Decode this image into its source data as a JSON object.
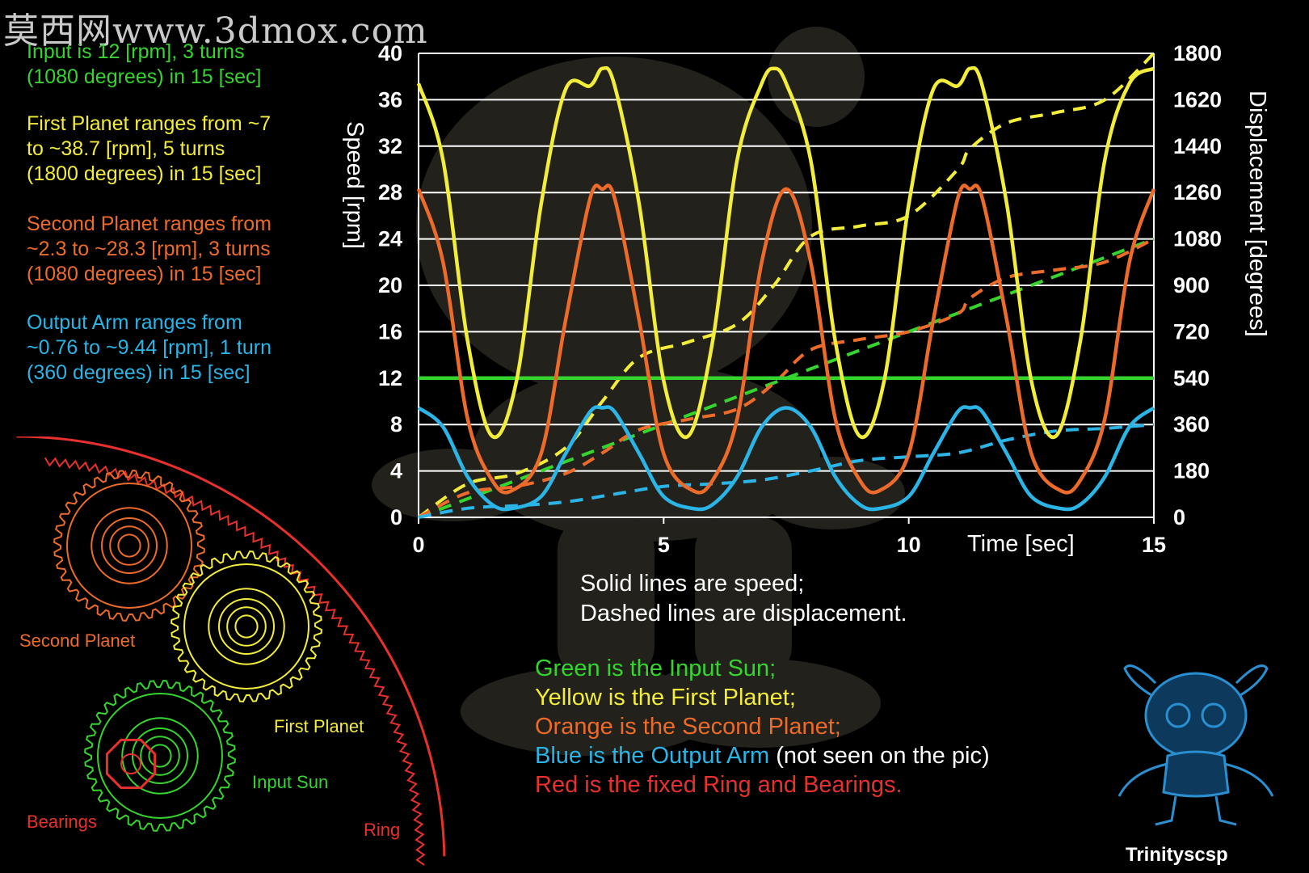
{
  "watermark": "莫西网www.3dmox.com",
  "info_blocks": [
    {
      "text": "Input is 12 [rpm], 3 turns\n(1080 degrees) in 15 [sec]",
      "color": "#35d42e"
    },
    {
      "text": "First Planet ranges from ~7\nto ~38.7 [rpm], 5 turns\n(1800 degrees) in 15 [sec]",
      "color": "#f2ec3a"
    },
    {
      "text": "Second Planet ranges from\n~2.3 to ~28.3 [rpm], 3 turns\n(1080 degrees) in 15 [sec]",
      "color": "#ec6b2a"
    },
    {
      "text": "Output Arm ranges from\n~0.76 to ~9.44 [rpm], 1 turn\n(360 degrees) in 15 [sec]",
      "color": "#2bb4e6"
    }
  ],
  "chart_data": {
    "type": "line",
    "xlabel": "Time [sec]",
    "ylabel": "Speed [rpm]",
    "y2label": "Displacement [degrees]",
    "xlim": [
      0,
      15
    ],
    "ylim": [
      0,
      40
    ],
    "y2lim": [
      0,
      1800
    ],
    "xticks": [
      0,
      5,
      10,
      15
    ],
    "yticks": [
      0,
      4,
      8,
      12,
      16,
      20,
      24,
      28,
      32,
      36,
      40
    ],
    "y2ticks": [
      0,
      180,
      360,
      540,
      720,
      900,
      1080,
      1260,
      1440,
      1620,
      1800
    ],
    "grid": true,
    "speed_series": [
      {
        "name": "Input Sun",
        "color": "#35d42e",
        "style": "solid",
        "axis": "left",
        "x": [
          0,
          15
        ],
        "values": [
          12,
          12
        ]
      },
      {
        "name": "First Planet",
        "color": "#f2ec3a",
        "style": "solid",
        "axis": "left",
        "x": [
          0,
          0.5,
          1.0,
          1.5,
          2.0,
          2.5,
          3.0,
          3.5,
          3.75,
          4.0,
          4.5,
          5.0,
          5.5,
          6.0,
          6.5,
          7.0,
          7.25,
          7.5,
          8.0,
          8.5,
          9.0,
          9.5,
          10.0,
          10.5,
          11.0,
          11.25,
          11.5,
          12.0,
          12.5,
          13.0,
          13.5,
          14.0,
          14.5,
          15.0
        ],
        "values": [
          37.4,
          30.8,
          15.2,
          7.0,
          11.8,
          27.0,
          36.9,
          37.2,
          38.7,
          37.2,
          27.0,
          11.8,
          7.0,
          15.2,
          30.8,
          37.4,
          38.7,
          37.4,
          30.8,
          15.2,
          7.0,
          11.8,
          27.0,
          36.9,
          37.2,
          38.7,
          37.2,
          27.0,
          11.8,
          7.0,
          15.2,
          30.8,
          37.4,
          38.7
        ]
      },
      {
        "name": "Second Planet",
        "color": "#ec6b2a",
        "style": "solid",
        "axis": "left",
        "x": [
          0,
          0.5,
          1.0,
          1.5,
          1.9,
          2.5,
          3.0,
          3.5,
          3.75,
          4.0,
          4.5,
          5.0,
          5.6,
          6.0,
          6.5,
          7.0,
          7.5,
          8.0,
          8.5,
          9.0,
          9.4,
          10.0,
          10.5,
          11.0,
          11.25,
          11.5,
          12.0,
          12.5,
          13.1,
          13.5,
          14.0,
          14.5,
          15.0
        ],
        "values": [
          28.3,
          22.0,
          8.5,
          3.2,
          2.3,
          5.5,
          17.0,
          27.5,
          28.3,
          27.5,
          17.0,
          5.5,
          2.3,
          3.2,
          8.5,
          22.0,
          28.3,
          22.0,
          8.5,
          3.2,
          2.3,
          5.5,
          17.0,
          27.5,
          28.3,
          27.5,
          17.0,
          5.5,
          2.3,
          3.2,
          8.5,
          22.0,
          28.3
        ]
      },
      {
        "name": "Output Arm",
        "color": "#2bb4e6",
        "style": "solid",
        "axis": "left",
        "x": [
          0,
          0.5,
          1.0,
          1.5,
          1.9,
          2.5,
          3.0,
          3.5,
          3.75,
          4.0,
          4.5,
          5.0,
          5.6,
          6.0,
          6.5,
          7.0,
          7.5,
          8.0,
          8.5,
          9.0,
          9.4,
          10.0,
          10.5,
          11.0,
          11.25,
          11.5,
          12.0,
          12.5,
          13.1,
          13.5,
          14.0,
          14.5,
          15.0
        ],
        "values": [
          9.44,
          7.8,
          3.5,
          1.1,
          0.76,
          1.8,
          5.5,
          9.1,
          9.44,
          9.1,
          5.5,
          1.8,
          0.76,
          1.1,
          3.5,
          7.8,
          9.44,
          7.8,
          3.5,
          1.1,
          0.76,
          1.8,
          5.5,
          9.1,
          9.44,
          9.1,
          5.5,
          1.8,
          0.76,
          1.1,
          3.5,
          7.8,
          9.44
        ]
      }
    ],
    "displacement_series": [
      {
        "name": "Input Sun",
        "color": "#35d42e",
        "style": "dashed",
        "axis": "right",
        "x": [
          0,
          15
        ],
        "values": [
          0,
          1080
        ]
      },
      {
        "name": "First Planet",
        "color": "#f2ec3a",
        "style": "dashed",
        "axis": "right",
        "x": [
          0,
          1,
          2,
          3,
          3.75,
          4.5,
          5.5,
          6.5,
          7.25,
          8.0,
          9.0,
          10.0,
          11.0,
          11.25,
          12.0,
          13.0,
          14.0,
          15.0
        ],
        "values": [
          0,
          130,
          170,
          270,
          450,
          620,
          680,
          750,
          900,
          1090,
          1130,
          1170,
          1350,
          1430,
          1530,
          1570,
          1620,
          1800
        ]
      },
      {
        "name": "Second Planet",
        "color": "#ec6b2a",
        "style": "dashed",
        "axis": "right",
        "x": [
          0,
          1,
          2,
          3,
          3.75,
          4.5,
          5.5,
          6.5,
          7.25,
          8.0,
          9.0,
          10.0,
          11.0,
          11.25,
          12.0,
          13.0,
          14.0,
          15.0
        ],
        "values": [
          0,
          95,
          120,
          170,
          250,
          340,
          380,
          420,
          520,
          650,
          690,
          720,
          790,
          850,
          930,
          960,
          990,
          1080
        ]
      },
      {
        "name": "Output Arm",
        "color": "#2bb4e6",
        "style": "dashed",
        "axis": "right",
        "x": [
          0,
          1,
          2,
          3,
          4,
          5,
          6,
          7,
          8,
          9,
          10,
          11,
          12,
          13,
          14,
          15
        ],
        "values": [
          0,
          35,
          45,
          60,
          90,
          120,
          130,
          145,
          180,
          220,
          235,
          250,
          300,
          335,
          345,
          360
        ]
      }
    ]
  },
  "notes": "Solid lines are speed;\nDashed lines are displacement.",
  "legend": [
    {
      "text": "Green is the Input Sun;",
      "color": "#35d42e",
      "extra": ""
    },
    {
      "text": "Yellow is the First Planet;",
      "color": "#f2ec3a",
      "extra": ""
    },
    {
      "text": "Orange is the Second Planet;",
      "color": "#ec6b2a",
      "extra": ""
    },
    {
      "text": "Blue is the Output Arm",
      "color": "#2bb4e6",
      "extra": " (not seen on the pic)"
    },
    {
      "text": "Red is the fixed Ring and Bearings.",
      "color": "#e8302c",
      "extra": ""
    }
  ],
  "gear_labels": {
    "second_planet": "Second Planet",
    "first_planet": "First Planet",
    "input_sun": "Input Sun",
    "bearings": "Bearings",
    "ring": "Ring"
  },
  "gear_colors": {
    "second_planet": "#ec6b2a",
    "first_planet": "#f2ec3a",
    "input_sun": "#35d42e",
    "ring": "#e8302c"
  },
  "credit": "Trinityscsp"
}
